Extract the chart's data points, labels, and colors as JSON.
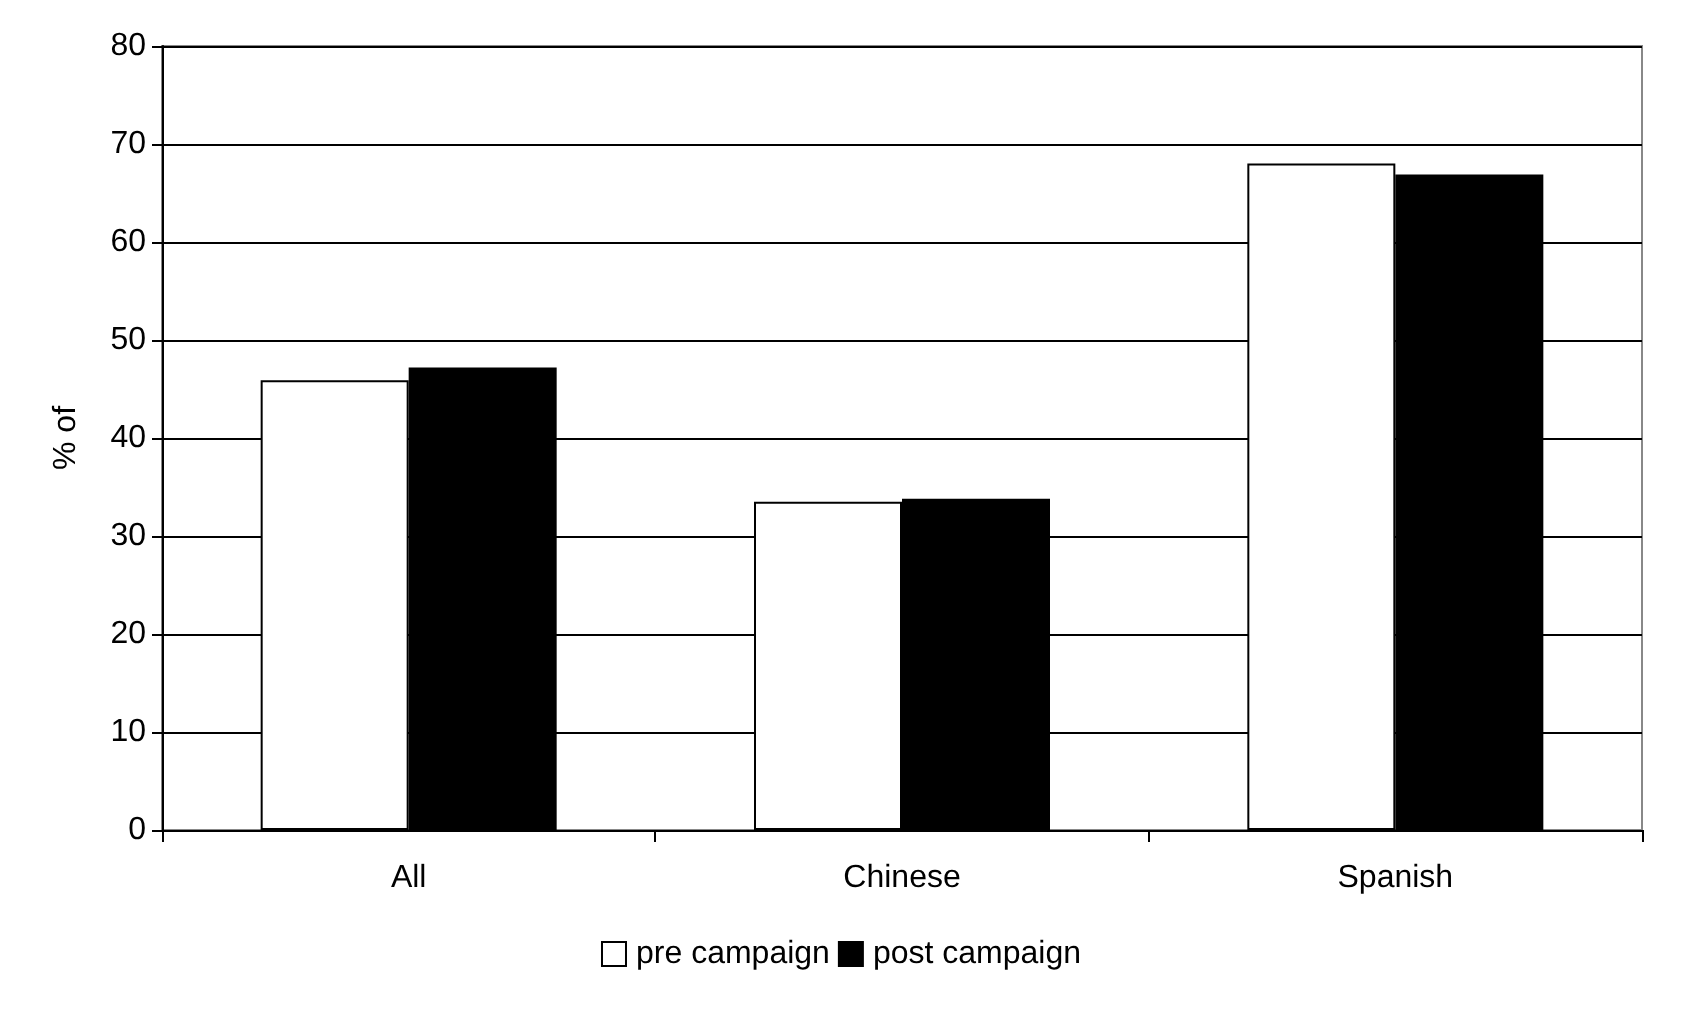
{
  "chart_data": {
    "type": "bar",
    "ylabel": "% of",
    "categories": [
      "All",
      "Chinese",
      "Spanish"
    ],
    "series": [
      {
        "name": "pre campaign",
        "color": "#ffffff",
        "values": [
          45.9,
          33.5,
          68.0
        ]
      },
      {
        "name": "post campaign",
        "color": "#000000",
        "values": [
          47.2,
          33.8,
          66.9
        ]
      }
    ],
    "ylim": [
      0,
      80
    ],
    "yticks": [
      0,
      10,
      20,
      30,
      40,
      50,
      60,
      70,
      80
    ],
    "grid": "y",
    "legend": "bottom"
  }
}
